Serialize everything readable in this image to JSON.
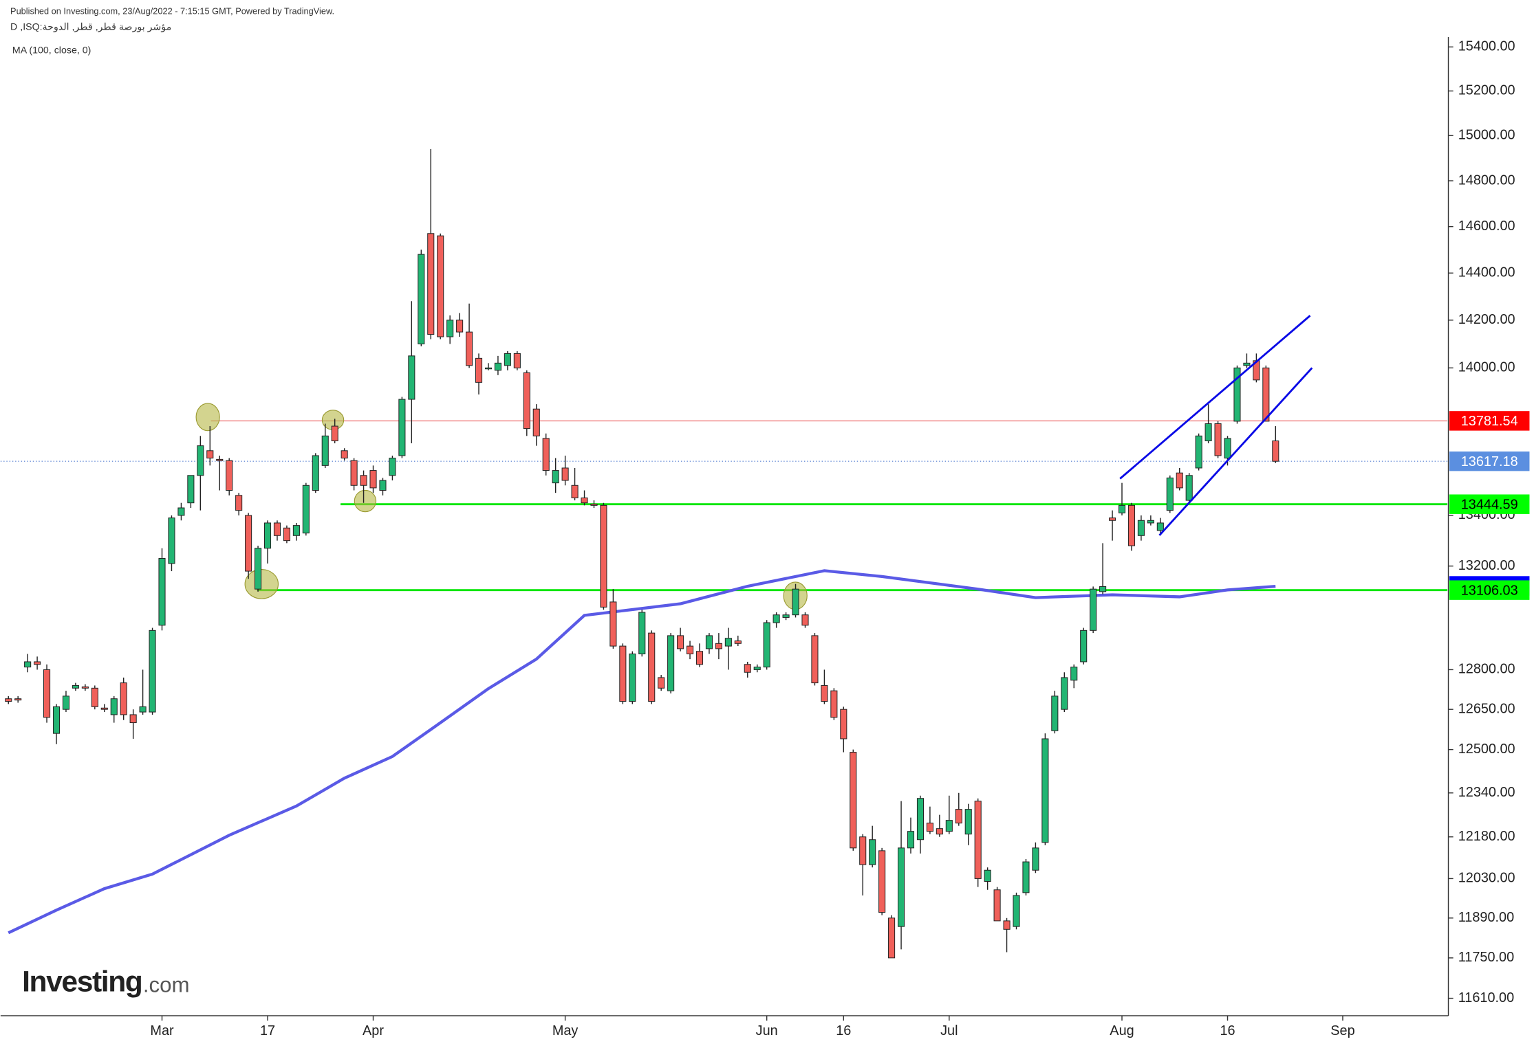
{
  "chart_data": {
    "type": "candlestick",
    "published": "Published on Investing.com, 23/Aug/2022 - 7:15:15 GMT, Powered by TradingView.",
    "symbol": "D ,ISQ:مؤشر بورصة قطر, قطر, الدوحة",
    "logo": "Investing",
    "logo_suffix": ".com",
    "log_scale": true,
    "up_color": "#22b573",
    "down_color": "#f0605a",
    "xlim": [
      -0.815,
      149.9
    ],
    "xticks": [
      {
        "value": 16,
        "label": "Mar"
      },
      {
        "value": 27,
        "label": "17"
      },
      {
        "value": 38,
        "label": "Apr"
      },
      {
        "value": 58,
        "label": "May"
      },
      {
        "value": 79,
        "label": "Jun"
      },
      {
        "value": 87,
        "label": "16"
      },
      {
        "value": 98,
        "label": "Jul"
      },
      {
        "value": 116,
        "label": "Aug"
      },
      {
        "value": 127,
        "label": "16"
      },
      {
        "value": 139,
        "label": "Sep"
      }
    ],
    "ylim": [
      11550,
      15445
    ],
    "yticks": [
      {
        "value": 15400,
        "label": "15400.00"
      },
      {
        "value": 15200,
        "label": "15200.00"
      },
      {
        "value": 15000,
        "label": "15000.00"
      },
      {
        "value": 14800,
        "label": "14800.00"
      },
      {
        "value": 14600,
        "label": "14600.00"
      },
      {
        "value": 14400,
        "label": "14400.00"
      },
      {
        "value": 14200,
        "label": "14200.00"
      },
      {
        "value": 14000,
        "label": "14000.00"
      },
      {
        "value": 13400,
        "label": "13400.00"
      },
      {
        "value": 13200,
        "label": "13200.00"
      },
      {
        "value": 12800,
        "label": "12800.00"
      },
      {
        "value": 12650,
        "label": "12650.00"
      },
      {
        "value": 12500,
        "label": "12500.00"
      },
      {
        "value": 12340,
        "label": "12340.00"
      },
      {
        "value": 12180,
        "label": "12180.00"
      },
      {
        "value": 12030,
        "label": "12030.00"
      },
      {
        "value": 11890,
        "label": "11890.00"
      },
      {
        "value": 11750,
        "label": "11750.00"
      },
      {
        "value": 11610,
        "label": "11610.00"
      }
    ],
    "candles": [
      {
        "open": 12690,
        "high": 12700,
        "low": 12670,
        "close": 12680
      },
      {
        "open": 12690,
        "high": 12700,
        "low": 12675,
        "close": 12685
      },
      {
        "open": 12810,
        "high": 12860,
        "low": 12790,
        "close": 12830
      },
      {
        "open": 12830,
        "high": 12850,
        "low": 12800,
        "close": 12820
      },
      {
        "open": 12800,
        "high": 12820,
        "low": 12600,
        "close": 12620
      },
      {
        "open": 12560,
        "high": 12670,
        "low": 12520,
        "close": 12660
      },
      {
        "open": 12650,
        "high": 12720,
        "low": 12640,
        "close": 12700
      },
      {
        "open": 12730,
        "high": 12750,
        "low": 12720,
        "close": 12740
      },
      {
        "open": 12735,
        "high": 12745,
        "low": 12720,
        "close": 12730
      },
      {
        "open": 12730,
        "high": 12740,
        "low": 12650,
        "close": 12660
      },
      {
        "open": 12655,
        "high": 12670,
        "low": 12640,
        "close": 12650
      },
      {
        "open": 12630,
        "high": 12700,
        "low": 12600,
        "close": 12690
      },
      {
        "open": 12750,
        "high": 12770,
        "low": 12610,
        "close": 12630
      },
      {
        "open": 12630,
        "high": 12650,
        "low": 12540,
        "close": 12600
      },
      {
        "open": 12640,
        "high": 12800,
        "low": 12630,
        "close": 12660
      },
      {
        "open": 12640,
        "high": 12960,
        "low": 12630,
        "close": 12950
      },
      {
        "open": 12970,
        "high": 13270,
        "low": 12950,
        "close": 13230
      },
      {
        "open": 13210,
        "high": 13400,
        "low": 13180,
        "close": 13390
      },
      {
        "open": 13400,
        "high": 13450,
        "low": 13380,
        "close": 13430
      },
      {
        "open": 13450,
        "high": 13560,
        "low": 13430,
        "close": 13560
      },
      {
        "open": 13560,
        "high": 13720,
        "low": 13420,
        "close": 13680
      },
      {
        "open": 13660,
        "high": 13760,
        "low": 13600,
        "close": 13630
      },
      {
        "open": 13625,
        "high": 13640,
        "low": 13500,
        "close": 13620
      },
      {
        "open": 13620,
        "high": 13630,
        "low": 13480,
        "close": 13500
      },
      {
        "open": 13480,
        "high": 13490,
        "low": 13400,
        "close": 13420
      },
      {
        "open": 13400,
        "high": 13410,
        "low": 13150,
        "close": 13180
      },
      {
        "open": 13110,
        "high": 13280,
        "low": 13100,
        "close": 13270
      },
      {
        "open": 13270,
        "high": 13380,
        "low": 13210,
        "close": 13370
      },
      {
        "open": 13370,
        "high": 13380,
        "low": 13300,
        "close": 13320
      },
      {
        "open": 13350,
        "high": 13360,
        "low": 13290,
        "close": 13300
      },
      {
        "open": 13320,
        "high": 13370,
        "low": 13300,
        "close": 13360
      },
      {
        "open": 13330,
        "high": 13530,
        "low": 13320,
        "close": 13520
      },
      {
        "open": 13500,
        "high": 13650,
        "low": 13490,
        "close": 13640
      },
      {
        "open": 13600,
        "high": 13770,
        "low": 13590,
        "close": 13720
      },
      {
        "open": 13760,
        "high": 13790,
        "low": 13690,
        "close": 13700
      },
      {
        "open": 13660,
        "high": 13670,
        "low": 13620,
        "close": 13630
      },
      {
        "open": 13620,
        "high": 13630,
        "low": 13500,
        "close": 13520
      },
      {
        "open": 13560,
        "high": 13580,
        "low": 13450,
        "close": 13520
      },
      {
        "open": 13580,
        "high": 13600,
        "low": 13490,
        "close": 13510
      },
      {
        "open": 13500,
        "high": 13550,
        "low": 13480,
        "close": 13540
      },
      {
        "open": 13560,
        "high": 13640,
        "low": 13540,
        "close": 13630
      },
      {
        "open": 13640,
        "high": 13880,
        "low": 13630,
        "close": 13870
      },
      {
        "open": 13870,
        "high": 14280,
        "low": 13690,
        "close": 14050
      },
      {
        "open": 14100,
        "high": 14500,
        "low": 14090,
        "close": 14480
      },
      {
        "open": 14570,
        "high": 14940,
        "low": 14120,
        "close": 14140
      },
      {
        "open": 14560,
        "high": 14570,
        "low": 14120,
        "close": 14130
      },
      {
        "open": 14130,
        "high": 14220,
        "low": 14100,
        "close": 14200
      },
      {
        "open": 14200,
        "high": 14230,
        "low": 14130,
        "close": 14150
      },
      {
        "open": 14150,
        "high": 14270,
        "low": 14000,
        "close": 14010
      },
      {
        "open": 14040,
        "high": 14060,
        "low": 13890,
        "close": 13940
      },
      {
        "open": 14000,
        "high": 14020,
        "low": 13990,
        "close": 14000
      },
      {
        "open": 13990,
        "high": 14050,
        "low": 13970,
        "close": 14020
      },
      {
        "open": 14010,
        "high": 14070,
        "low": 13990,
        "close": 14060
      },
      {
        "open": 14060,
        "high": 14070,
        "low": 13990,
        "close": 14000
      },
      {
        "open": 13980,
        "high": 13990,
        "low": 13720,
        "close": 13750
      },
      {
        "open": 13830,
        "high": 13850,
        "low": 13680,
        "close": 13720
      },
      {
        "open": 13710,
        "high": 13730,
        "low": 13560,
        "close": 13580
      },
      {
        "open": 13530,
        "high": 13630,
        "low": 13490,
        "close": 13580
      },
      {
        "open": 13590,
        "high": 13640,
        "low": 13520,
        "close": 13540
      },
      {
        "open": 13520,
        "high": 13590,
        "low": 13460,
        "close": 13470
      },
      {
        "open": 13470,
        "high": 13500,
        "low": 13440,
        "close": 13450
      },
      {
        "open": 13445,
        "high": 13460,
        "low": 13430,
        "close": 13440
      },
      {
        "open": 13440,
        "high": 13450,
        "low": 13030,
        "close": 13040
      },
      {
        "open": 13060,
        "high": 13110,
        "low": 12880,
        "close": 12890
      },
      {
        "open": 12890,
        "high": 12900,
        "low": 12670,
        "close": 12680
      },
      {
        "open": 12680,
        "high": 12870,
        "low": 12670,
        "close": 12860
      },
      {
        "open": 12860,
        "high": 13030,
        "low": 12850,
        "close": 13020
      },
      {
        "open": 12940,
        "high": 12950,
        "low": 12670,
        "close": 12680
      },
      {
        "open": 12770,
        "high": 12780,
        "low": 12720,
        "close": 12730
      },
      {
        "open": 12720,
        "high": 12940,
        "low": 12710,
        "close": 12930
      },
      {
        "open": 12930,
        "high": 12960,
        "low": 12870,
        "close": 12880
      },
      {
        "open": 12890,
        "high": 12910,
        "low": 12840,
        "close": 12860
      },
      {
        "open": 12870,
        "high": 12900,
        "low": 12810,
        "close": 12820
      },
      {
        "open": 12880,
        "high": 12940,
        "low": 12860,
        "close": 12930
      },
      {
        "open": 12900,
        "high": 12940,
        "low": 12840,
        "close": 12880
      },
      {
        "open": 12890,
        "high": 12960,
        "low": 12800,
        "close": 12920
      },
      {
        "open": 12910,
        "high": 12930,
        "low": 12890,
        "close": 12900
      },
      {
        "open": 12820,
        "high": 12830,
        "low": 12770,
        "close": 12790
      },
      {
        "open": 12800,
        "high": 12820,
        "low": 12790,
        "close": 12810
      },
      {
        "open": 12810,
        "high": 12990,
        "low": 12800,
        "close": 12980
      },
      {
        "open": 12980,
        "high": 13020,
        "low": 12960,
        "close": 13010
      },
      {
        "open": 13000,
        "high": 13020,
        "low": 12990,
        "close": 13010
      },
      {
        "open": 13010,
        "high": 13130,
        "low": 13000,
        "close": 13110
      },
      {
        "open": 13010,
        "high": 13020,
        "low": 12960,
        "close": 12970
      },
      {
        "open": 12930,
        "high": 12940,
        "low": 12740,
        "close": 12750
      },
      {
        "open": 12740,
        "high": 12800,
        "low": 12670,
        "close": 12680
      },
      {
        "open": 12720,
        "high": 12730,
        "low": 12610,
        "close": 12620
      },
      {
        "open": 12650,
        "high": 12660,
        "low": 12490,
        "close": 12540
      },
      {
        "open": 12490,
        "high": 12500,
        "low": 12130,
        "close": 12140
      },
      {
        "open": 12180,
        "high": 12190,
        "low": 11970,
        "close": 12080
      },
      {
        "open": 12080,
        "high": 12220,
        "low": 12070,
        "close": 12170
      },
      {
        "open": 12130,
        "high": 12140,
        "low": 11900,
        "close": 11910
      },
      {
        "open": 11890,
        "high": 11900,
        "low": 11750,
        "close": 11750
      },
      {
        "open": 11860,
        "high": 12310,
        "low": 11780,
        "close": 12140
      },
      {
        "open": 12140,
        "high": 12250,
        "low": 12120,
        "close": 12200
      },
      {
        "open": 12170,
        "high": 12330,
        "low": 12120,
        "close": 12320
      },
      {
        "open": 12230,
        "high": 12290,
        "low": 12190,
        "close": 12200
      },
      {
        "open": 12210,
        "high": 12260,
        "low": 12180,
        "close": 12190
      },
      {
        "open": 12200,
        "high": 12330,
        "low": 12190,
        "close": 12240
      },
      {
        "open": 12280,
        "high": 12340,
        "low": 12220,
        "close": 12230
      },
      {
        "open": 12190,
        "high": 12300,
        "low": 12150,
        "close": 12280
      },
      {
        "open": 12310,
        "high": 12320,
        "low": 12000,
        "close": 12030
      },
      {
        "open": 12020,
        "high": 12070,
        "low": 11990,
        "close": 12060
      },
      {
        "open": 11990,
        "high": 12000,
        "low": 11880,
        "close": 11880
      },
      {
        "open": 11880,
        "high": 11890,
        "low": 11770,
        "close": 11850
      },
      {
        "open": 11860,
        "high": 11980,
        "low": 11850,
        "close": 11970
      },
      {
        "open": 11980,
        "high": 12100,
        "low": 11970,
        "close": 12090
      },
      {
        "open": 12060,
        "high": 12160,
        "low": 12050,
        "close": 12140
      },
      {
        "open": 12160,
        "high": 12560,
        "low": 12150,
        "close": 12540
      },
      {
        "open": 12570,
        "high": 12720,
        "low": 12560,
        "close": 12700
      },
      {
        "open": 12650,
        "high": 12790,
        "low": 12640,
        "close": 12770
      },
      {
        "open": 12760,
        "high": 12820,
        "low": 12730,
        "close": 12810
      },
      {
        "open": 12830,
        "high": 12960,
        "low": 12820,
        "close": 12950
      },
      {
        "open": 12950,
        "high": 13120,
        "low": 12940,
        "close": 13110
      },
      {
        "open": 13100,
        "high": 13290,
        "low": 13090,
        "close": 13120
      },
      {
        "open": 13390,
        "high": 13420,
        "low": 13300,
        "close": 13380
      },
      {
        "open": 13410,
        "high": 13530,
        "low": 13400,
        "close": 13440
      },
      {
        "open": 13440,
        "high": 13450,
        "low": 13260,
        "close": 13280
      },
      {
        "open": 13320,
        "high": 13400,
        "low": 13300,
        "close": 13380
      },
      {
        "open": 13370,
        "high": 13400,
        "low": 13360,
        "close": 13380
      },
      {
        "open": 13340,
        "high": 13390,
        "low": 13330,
        "close": 13370
      },
      {
        "open": 13420,
        "high": 13560,
        "low": 13410,
        "close": 13550
      },
      {
        "open": 13570,
        "high": 13590,
        "low": 13500,
        "close": 13510
      },
      {
        "open": 13460,
        "high": 13570,
        "low": 13450,
        "close": 13560
      },
      {
        "open": 13590,
        "high": 13730,
        "low": 13580,
        "close": 13720
      },
      {
        "open": 13700,
        "high": 13850,
        "low": 13690,
        "close": 13770
      },
      {
        "open": 13770,
        "high": 13780,
        "low": 13630,
        "close": 13640
      },
      {
        "open": 13630,
        "high": 13720,
        "low": 13600,
        "close": 13710
      },
      {
        "open": 13780,
        "high": 14010,
        "low": 13770,
        "close": 14000
      },
      {
        "open": 14010,
        "high": 14060,
        "low": 14000,
        "close": 14020
      },
      {
        "open": 14030,
        "high": 14060,
        "low": 13940,
        "close": 13950
      },
      {
        "open": 14000,
        "high": 14010,
        "low": 13780,
        "close": 13780
      },
      {
        "open": 13700,
        "high": 13760,
        "low": 13610,
        "close": 13617.18
      }
    ],
    "ma": {
      "name": "MA (100, close, 0)",
      "color": "#5a5ae6",
      "x": [
        0,
        5,
        10,
        15,
        23,
        30,
        35,
        40,
        45,
        50,
        55,
        60,
        70,
        77,
        85,
        91,
        101,
        107,
        115,
        122,
        127,
        132
      ],
      "values": [
        11838,
        11918,
        11994,
        12046,
        12186,
        12292,
        12394,
        12474,
        12600,
        12728,
        12840,
        13008,
        13053,
        13121,
        13182,
        13159,
        13110,
        13077,
        13088,
        13080,
        13107,
        13121
      ]
    },
    "levels": [
      {
        "value": 13781.54,
        "start": 21.1,
        "line_color": "#f08a8a",
        "label_color": "#ff0000",
        "text_color": "#ffffff",
        "style": "solid"
      },
      {
        "value": 13617.18,
        "start": -0.815,
        "line_color": "#6a8fd8",
        "label_color": "#5b8fe0",
        "text_color": "#ffffff",
        "style": "dotted"
      },
      {
        "value": 13444.59,
        "start": 34.6,
        "line_color": "#00e600",
        "label_color": "#00ff00",
        "text_color": "#000000",
        "style": "solid"
      },
      {
        "value": 13122.41,
        "start": null,
        "line_color": null,
        "label_color": "#0000ff",
        "text_color": "#ffffff",
        "style": null
      },
      {
        "value": 13106.03,
        "start": 25.9,
        "line_color": "#00e600",
        "label_color": "#00ff00",
        "text_color": "#000000",
        "style": "solid"
      }
    ],
    "channel_color": "#0a0ae6",
    "channel": [
      {
        "x": [
          115.8,
          135.6
        ],
        "values": [
          13547,
          14219
        ]
      },
      {
        "x": [
          119.9,
          135.8
        ],
        "values": [
          13321,
          14000
        ]
      }
    ]
  }
}
